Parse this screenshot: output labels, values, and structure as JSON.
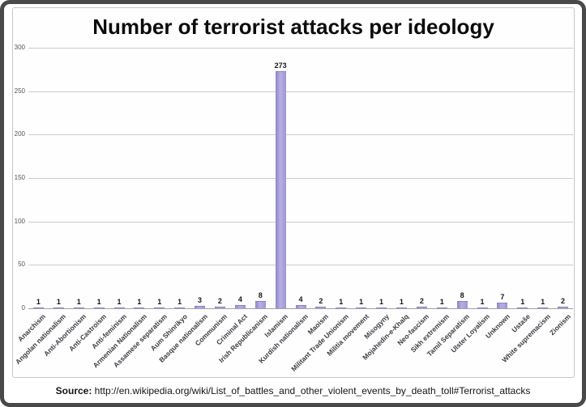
{
  "title": "Number of terrorist attacks per ideology",
  "source": {
    "label": "Source:",
    "text": " http://en.wikipedia.org/wiki/List_of_battles_and_other_violent_events_by_death_toll#Terrorist_attacks"
  },
  "colors": {
    "bar_fill_left": "#8e86c9",
    "bar_fill_mid": "#b7afe3",
    "bar_fill_right": "#9e96d4",
    "gridline": "#cbcbd1",
    "axis_zero_line": "#a0a0a8",
    "tick_label": "#55555c",
    "category_label": "#3d3d44",
    "value_label": "#171717",
    "frame_border": "#494949",
    "box_border": "#c7c7c9",
    "background": "#ffffff"
  },
  "chart_data": {
    "type": "bar",
    "title": "Number of terrorist attacks per ideology",
    "xlabel": "",
    "ylabel": "",
    "ylim": [
      0,
      300
    ],
    "yticks": [
      0,
      50,
      100,
      150,
      200,
      250,
      300
    ],
    "grid": true,
    "legend": false,
    "value_labels_shown": true,
    "category_label_rotation_deg": 45,
    "categories": [
      "Anarchism",
      "Angolan nationalism",
      "Anti-Abortionism",
      "Anti-Castroism",
      "Anti-feminism",
      "Armenian Nationalism",
      "Assamese separatism",
      "Aum Shinrikyo",
      "Basque nationalism",
      "Communism",
      "Criminal Act",
      "Irish Republicanism",
      "Islamism",
      "Kurdish nationalism",
      "Maoism",
      "Militant Trade Unionism",
      "Militia movement",
      "Misogyny",
      "Mojahedin-e-Khalq",
      "Neo-fascism",
      "Sikh extremism",
      "Tamil Separatism",
      "Ulster Loyalism",
      "Unknown",
      "Ustaše",
      "White supremacism",
      "Zionism"
    ],
    "values": [
      1,
      1,
      1,
      1,
      1,
      1,
      1,
      1,
      3,
      2,
      4,
      8,
      273,
      4,
      2,
      1,
      1,
      1,
      1,
      2,
      1,
      8,
      1,
      7,
      1,
      1,
      2
    ]
  }
}
